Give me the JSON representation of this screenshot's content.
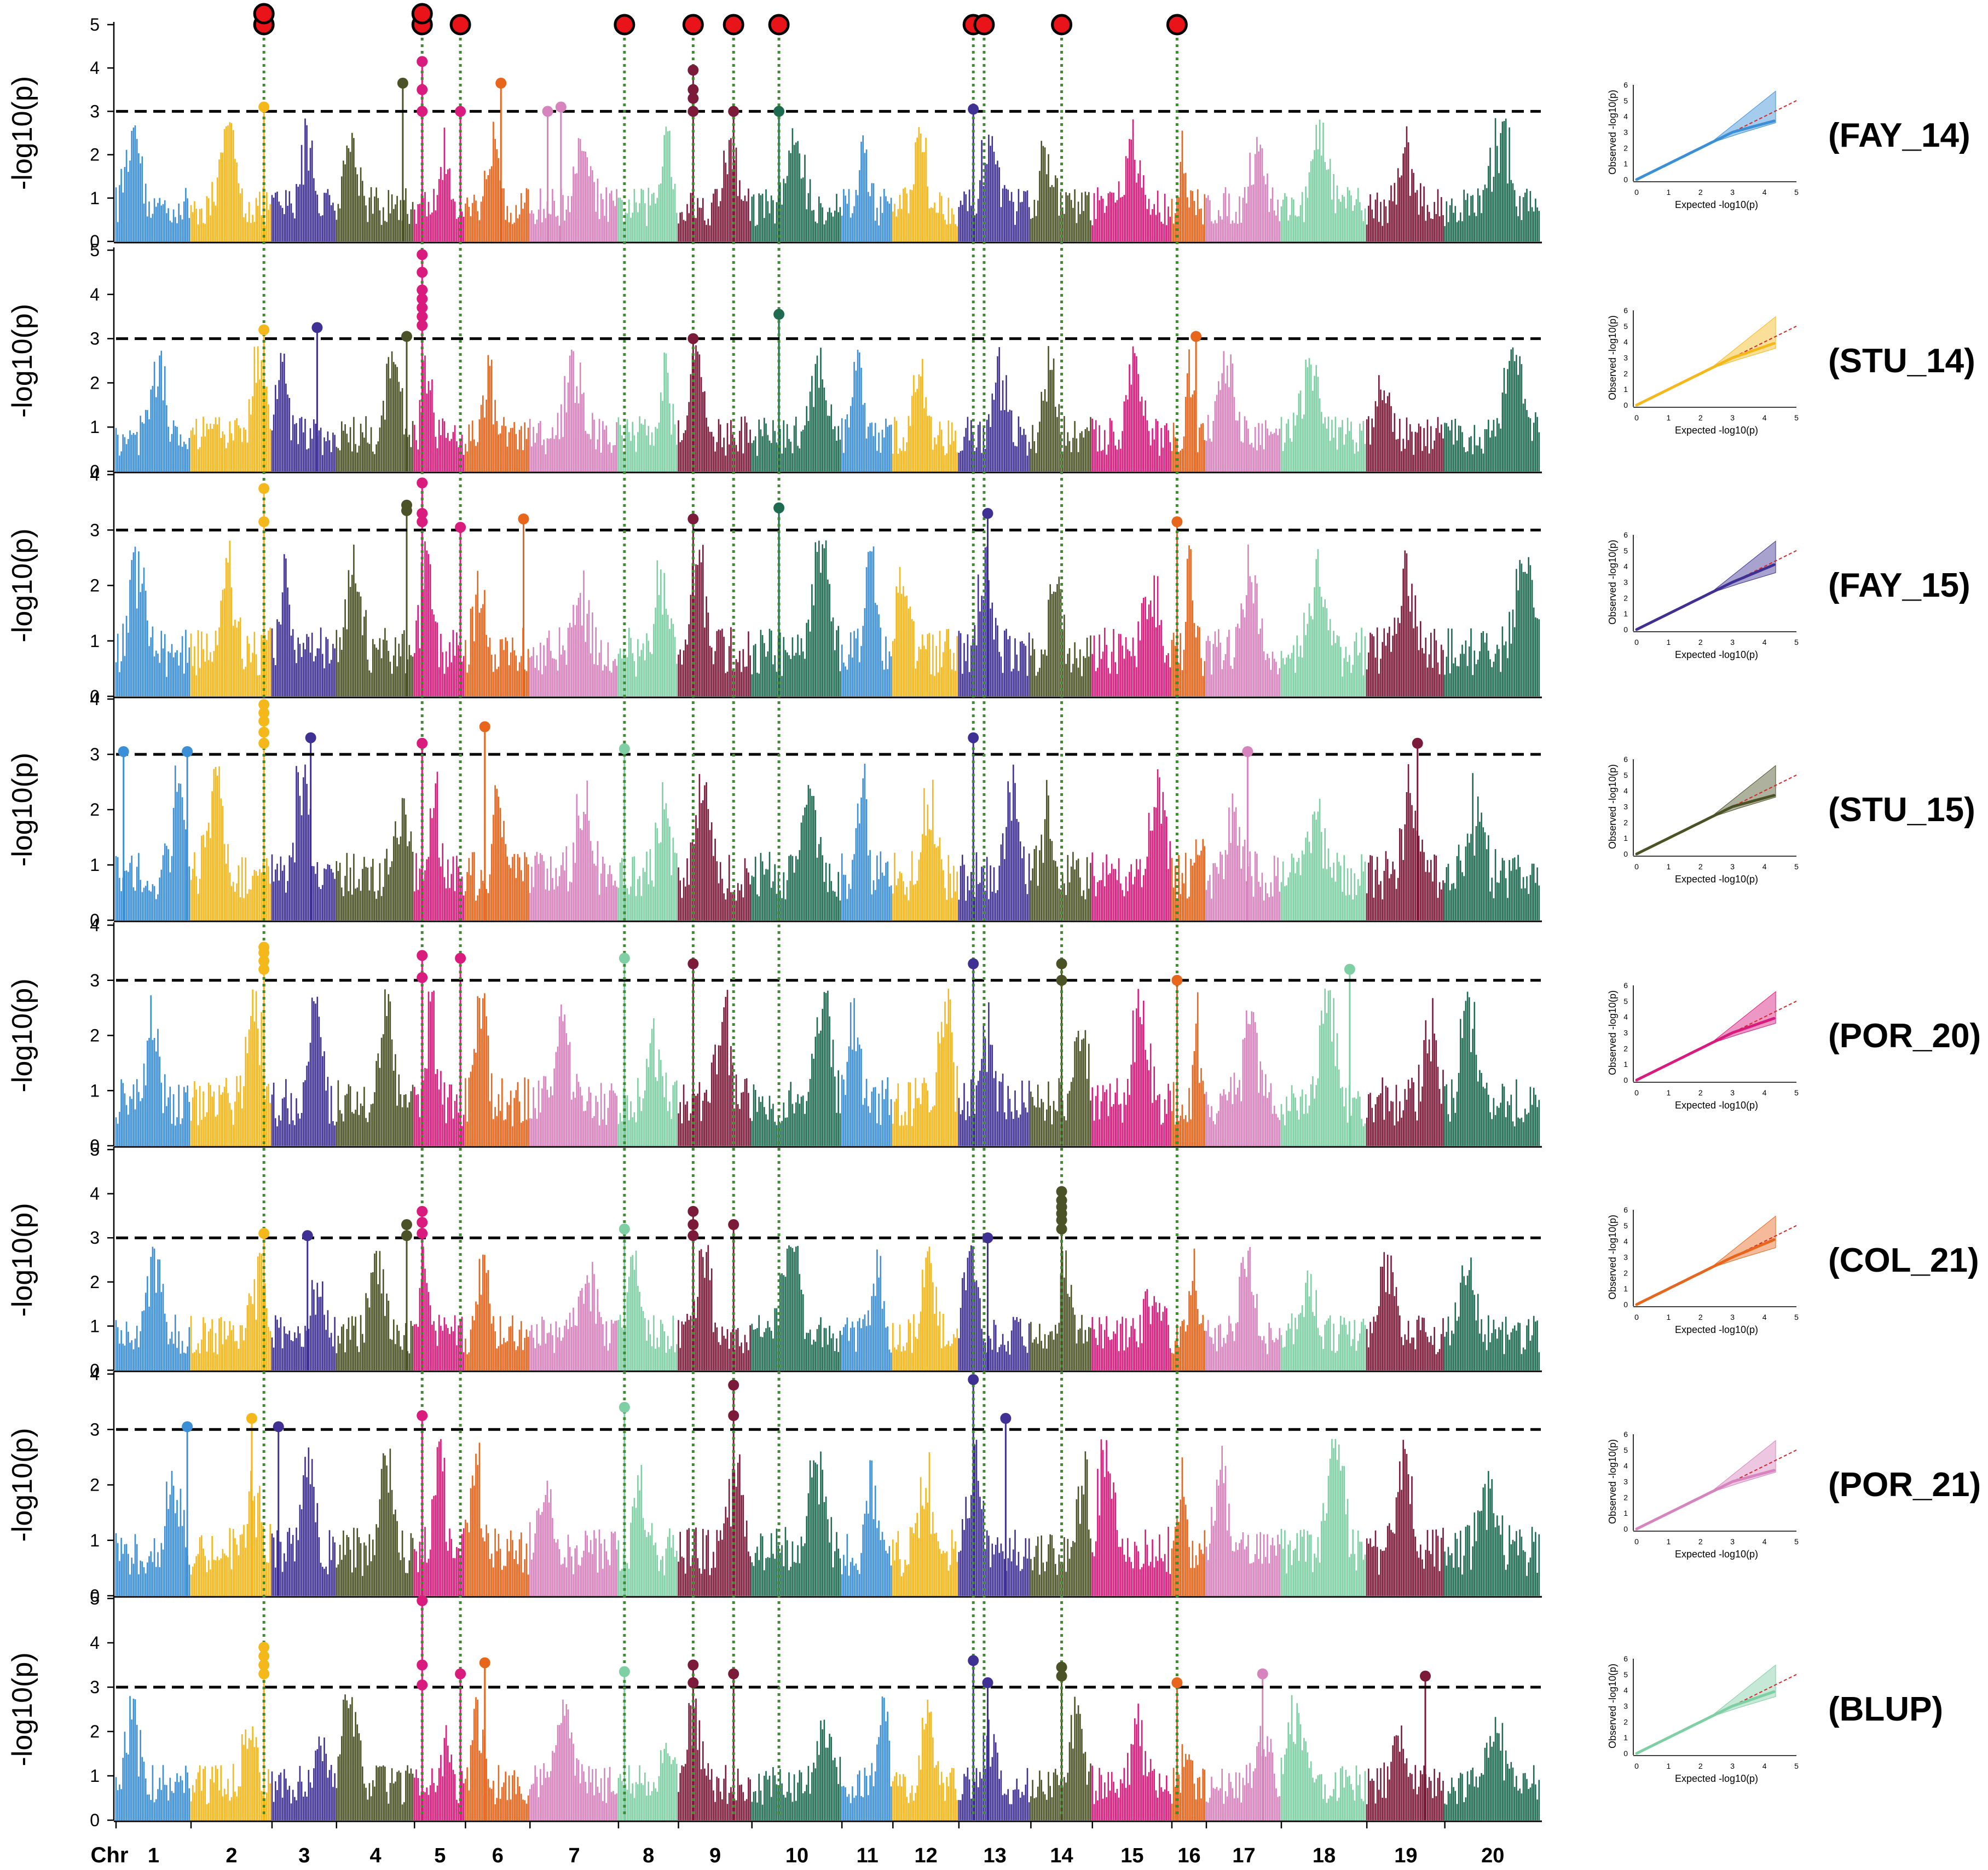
{
  "chart_data": {
    "type": "scatter",
    "title": "",
    "xlabel": "Chr",
    "ylabel_manhattan": "-log10(p)",
    "qq_xlabel": "Expected -log10(p)",
    "qq_ylabel": "Observed -log10(p)",
    "threshold": 3,
    "qq_ticks": [
      0,
      1,
      2,
      3,
      4,
      5,
      6
    ],
    "chromosomes": [
      "1",
      "2",
      "3",
      "4",
      "5",
      "6",
      "7",
      "8",
      "9",
      "10",
      "11",
      "12",
      "13",
      "14",
      "15",
      "16",
      "17",
      "18",
      "19",
      "20"
    ],
    "chromosome_colors": [
      "#3a8fd6",
      "#f5b81b",
      "#3f3193",
      "#4b5326",
      "#d81b7c",
      "#e8651c",
      "#d783bd",
      "#7fcfa4",
      "#7c1a3a",
      "#1e6b52",
      "#3a8fd6",
      "#f5b81b",
      "#3f3193",
      "#4b5326",
      "#d81b7c",
      "#e8651c",
      "#d783bd",
      "#7fcfa4",
      "#7c1a3a",
      "#1e6b52"
    ],
    "top_markers": [
      {
        "chr": 2,
        "pos": 0.9,
        "stack": 2
      },
      {
        "chr": 5,
        "pos": 0.15,
        "stack": 2
      },
      {
        "chr": 5,
        "pos": 0.9,
        "stack": 1
      },
      {
        "chr": 8,
        "pos": 0.1,
        "stack": 1
      },
      {
        "chr": 9,
        "pos": 0.2,
        "stack": 1
      },
      {
        "chr": 9,
        "pos": 0.75,
        "stack": 1
      },
      {
        "chr": 10,
        "pos": 0.3,
        "stack": 1
      },
      {
        "chr": 13,
        "pos": 0.2,
        "stack": 1
      },
      {
        "chr": 13,
        "pos": 0.35,
        "stack": 1
      },
      {
        "chr": 14,
        "pos": 0.5,
        "stack": 1
      },
      {
        "chr": 16,
        "pos": 0.15,
        "stack": 1
      }
    ],
    "panels": [
      {
        "name": "(FAY_14)",
        "ymax": 5,
        "qq_color": "#3a8fd6",
        "peaks": [
          {
            "chr": 2,
            "pos": 0.9,
            "values": [
              3.1
            ]
          },
          {
            "chr": 4,
            "pos": 0.85,
            "values": [
              3.65
            ]
          },
          {
            "chr": 5,
            "pos": 0.15,
            "values": [
              3.0,
              3.5,
              4.15
            ]
          },
          {
            "chr": 5,
            "pos": 0.9,
            "values": [
              3.0
            ]
          },
          {
            "chr": 6,
            "pos": 0.55,
            "values": [
              3.65
            ]
          },
          {
            "chr": 7,
            "pos": 0.2,
            "values": [
              3.0
            ]
          },
          {
            "chr": 7,
            "pos": 0.35,
            "values": [
              3.1
            ]
          },
          {
            "chr": 9,
            "pos": 0.2,
            "values": [
              3.0,
              3.3,
              3.5,
              3.95
            ]
          },
          {
            "chr": 9,
            "pos": 0.75,
            "values": [
              3.0
            ]
          },
          {
            "chr": 10,
            "pos": 0.3,
            "values": [
              3.0
            ]
          },
          {
            "chr": 13,
            "pos": 0.2,
            "values": [
              3.05
            ]
          }
        ]
      },
      {
        "name": "(STU_14)",
        "ymax": 5,
        "qq_color": "#f5b81b",
        "peaks": [
          {
            "chr": 2,
            "pos": 0.9,
            "values": [
              3.2
            ]
          },
          {
            "chr": 3,
            "pos": 0.7,
            "values": [
              3.25
            ]
          },
          {
            "chr": 4,
            "pos": 0.9,
            "values": [
              3.05
            ]
          },
          {
            "chr": 5,
            "pos": 0.15,
            "values": [
              3.3,
              3.5,
              3.7,
              3.9,
              4.1,
              4.5,
              4.9
            ]
          },
          {
            "chr": 9,
            "pos": 0.2,
            "values": [
              3.0
            ]
          },
          {
            "chr": 10,
            "pos": 0.3,
            "values": [
              3.55
            ]
          },
          {
            "chr": 16,
            "pos": 0.7,
            "values": [
              3.05
            ]
          }
        ]
      },
      {
        "name": "(FAY_15)",
        "ymax": 4,
        "qq_color": "#3f3193",
        "peaks": [
          {
            "chr": 2,
            "pos": 0.9,
            "values": [
              3.15,
              3.75
            ]
          },
          {
            "chr": 4,
            "pos": 0.9,
            "values": [
              3.35,
              3.45
            ]
          },
          {
            "chr": 5,
            "pos": 0.15,
            "values": [
              3.15,
              3.3,
              3.85
            ]
          },
          {
            "chr": 5,
            "pos": 0.9,
            "values": [
              3.05
            ]
          },
          {
            "chr": 6,
            "pos": 0.9,
            "values": [
              3.2
            ]
          },
          {
            "chr": 9,
            "pos": 0.2,
            "values": [
              3.2
            ]
          },
          {
            "chr": 10,
            "pos": 0.3,
            "values": [
              3.4
            ]
          },
          {
            "chr": 13,
            "pos": 0.4,
            "values": [
              3.3
            ]
          },
          {
            "chr": 16,
            "pos": 0.15,
            "values": [
              3.15
            ]
          }
        ]
      },
      {
        "name": "(STU_15)",
        "ymax": 4,
        "qq_color": "#4b5326",
        "peaks": [
          {
            "chr": 1,
            "pos": 0.1,
            "values": [
              3.05
            ]
          },
          {
            "chr": 1,
            "pos": 0.95,
            "values": [
              3.05
            ]
          },
          {
            "chr": 2,
            "pos": 0.9,
            "values": [
              3.2,
              3.4,
              3.6,
              3.75,
              3.9
            ]
          },
          {
            "chr": 3,
            "pos": 0.6,
            "values": [
              3.3
            ]
          },
          {
            "chr": 5,
            "pos": 0.15,
            "values": [
              3.2
            ]
          },
          {
            "chr": 6,
            "pos": 0.3,
            "values": [
              3.5
            ]
          },
          {
            "chr": 8,
            "pos": 0.1,
            "values": [
              3.1
            ]
          },
          {
            "chr": 13,
            "pos": 0.2,
            "values": [
              3.3
            ]
          },
          {
            "chr": 17,
            "pos": 0.55,
            "values": [
              3.05
            ]
          },
          {
            "chr": 19,
            "pos": 0.65,
            "values": [
              3.2
            ]
          }
        ]
      },
      {
        "name": "(POR_20)",
        "ymax": 4,
        "qq_color": "#d81b7c",
        "peaks": [
          {
            "chr": 2,
            "pos": 0.9,
            "values": [
              3.2,
              3.35,
              3.5,
              3.6
            ]
          },
          {
            "chr": 5,
            "pos": 0.15,
            "values": [
              3.05,
              3.45
            ]
          },
          {
            "chr": 5,
            "pos": 0.9,
            "values": [
              3.4
            ]
          },
          {
            "chr": 8,
            "pos": 0.1,
            "values": [
              3.4
            ]
          },
          {
            "chr": 9,
            "pos": 0.2,
            "values": [
              3.3
            ]
          },
          {
            "chr": 13,
            "pos": 0.2,
            "values": [
              3.3
            ]
          },
          {
            "chr": 14,
            "pos": 0.5,
            "values": [
              3.0,
              3.3
            ]
          },
          {
            "chr": 16,
            "pos": 0.15,
            "values": [
              3.0
            ]
          },
          {
            "chr": 18,
            "pos": 0.8,
            "values": [
              3.2
            ]
          }
        ]
      },
      {
        "name": "(COL_21)",
        "ymax": 5,
        "qq_color": "#e8651c",
        "peaks": [
          {
            "chr": 2,
            "pos": 0.9,
            "values": [
              3.1
            ]
          },
          {
            "chr": 3,
            "pos": 0.55,
            "values": [
              3.05
            ]
          },
          {
            "chr": 4,
            "pos": 0.9,
            "values": [
              3.05,
              3.3
            ]
          },
          {
            "chr": 5,
            "pos": 0.15,
            "values": [
              3.1,
              3.35,
              3.6
            ]
          },
          {
            "chr": 8,
            "pos": 0.1,
            "values": [
              3.2
            ]
          },
          {
            "chr": 9,
            "pos": 0.2,
            "values": [
              3.05,
              3.3,
              3.6
            ]
          },
          {
            "chr": 9,
            "pos": 0.75,
            "values": [
              3.3
            ]
          },
          {
            "chr": 13,
            "pos": 0.4,
            "values": [
              3.0
            ]
          },
          {
            "chr": 14,
            "pos": 0.5,
            "values": [
              3.2,
              3.4,
              3.55,
              3.7,
              3.85,
              4.05
            ]
          }
        ]
      },
      {
        "name": "(POR_21)",
        "ymax": 4,
        "qq_color": "#d783bd",
        "peaks": [
          {
            "chr": 1,
            "pos": 0.95,
            "values": [
              3.05
            ]
          },
          {
            "chr": 2,
            "pos": 0.75,
            "values": [
              3.2
            ]
          },
          {
            "chr": 3,
            "pos": 0.1,
            "values": [
              3.05
            ]
          },
          {
            "chr": 5,
            "pos": 0.15,
            "values": [
              3.25
            ]
          },
          {
            "chr": 8,
            "pos": 0.1,
            "values": [
              3.4
            ]
          },
          {
            "chr": 9,
            "pos": 0.75,
            "values": [
              3.25,
              3.8
            ]
          },
          {
            "chr": 13,
            "pos": 0.2,
            "values": [
              3.9
            ]
          },
          {
            "chr": 13,
            "pos": 0.65,
            "values": [
              3.2
            ]
          }
        ]
      },
      {
        "name": "(BLUP)",
        "ymax": 5,
        "qq_color": "#7fcfa4",
        "peaks": [
          {
            "chr": 2,
            "pos": 0.9,
            "values": [
              3.3,
              3.5,
              3.7,
              3.9
            ]
          },
          {
            "chr": 5,
            "pos": 0.15,
            "values": [
              3.05,
              3.5,
              4.95
            ]
          },
          {
            "chr": 5,
            "pos": 0.9,
            "values": [
              3.3
            ]
          },
          {
            "chr": 6,
            "pos": 0.3,
            "values": [
              3.55
            ]
          },
          {
            "chr": 8,
            "pos": 0.1,
            "values": [
              3.35
            ]
          },
          {
            "chr": 9,
            "pos": 0.2,
            "values": [
              3.1,
              3.5
            ]
          },
          {
            "chr": 9,
            "pos": 0.75,
            "values": [
              3.3
            ]
          },
          {
            "chr": 13,
            "pos": 0.2,
            "values": [
              3.6
            ]
          },
          {
            "chr": 13,
            "pos": 0.4,
            "values": [
              3.1
            ]
          },
          {
            "chr": 14,
            "pos": 0.5,
            "values": [
              3.25,
              3.45
            ]
          },
          {
            "chr": 16,
            "pos": 0.15,
            "values": [
              3.1
            ]
          },
          {
            "chr": 17,
            "pos": 0.75,
            "values": [
              3.3
            ]
          },
          {
            "chr": 19,
            "pos": 0.75,
            "values": [
              3.25
            ]
          }
        ]
      }
    ]
  }
}
